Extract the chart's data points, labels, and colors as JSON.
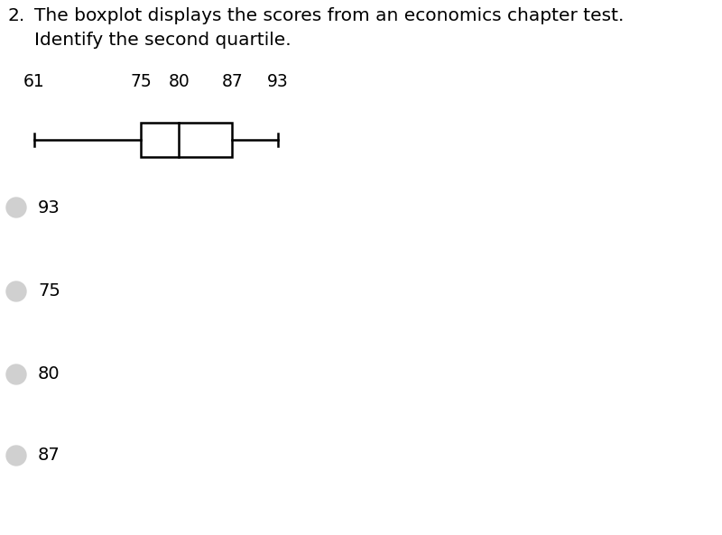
{
  "title_line1": "The boxplot displays the scores from an economics chapter test.",
  "title_line2": "Identify the second quartile.",
  "question_number": "2.",
  "min_val": 61,
  "q1": 75,
  "median": 80,
  "q3": 87,
  "max_val": 93,
  "labels_above": [
    "61",
    "75 80",
    "87",
    "93"
  ],
  "label_vals": [
    61,
    75,
    80,
    87,
    93
  ],
  "label_texts": [
    "61",
    "75",
    "80",
    "87",
    "93"
  ],
  "answer_choices": [
    "93",
    "75",
    "80",
    "87"
  ],
  "background_color": "#ffffff",
  "text_color": "#000000",
  "box_color": "#000000",
  "radio_color": "#d0d0d0",
  "font_size_title": 14.5,
  "font_size_labels": 13.5,
  "font_size_answers": 14,
  "font_size_qnum": 14.5
}
